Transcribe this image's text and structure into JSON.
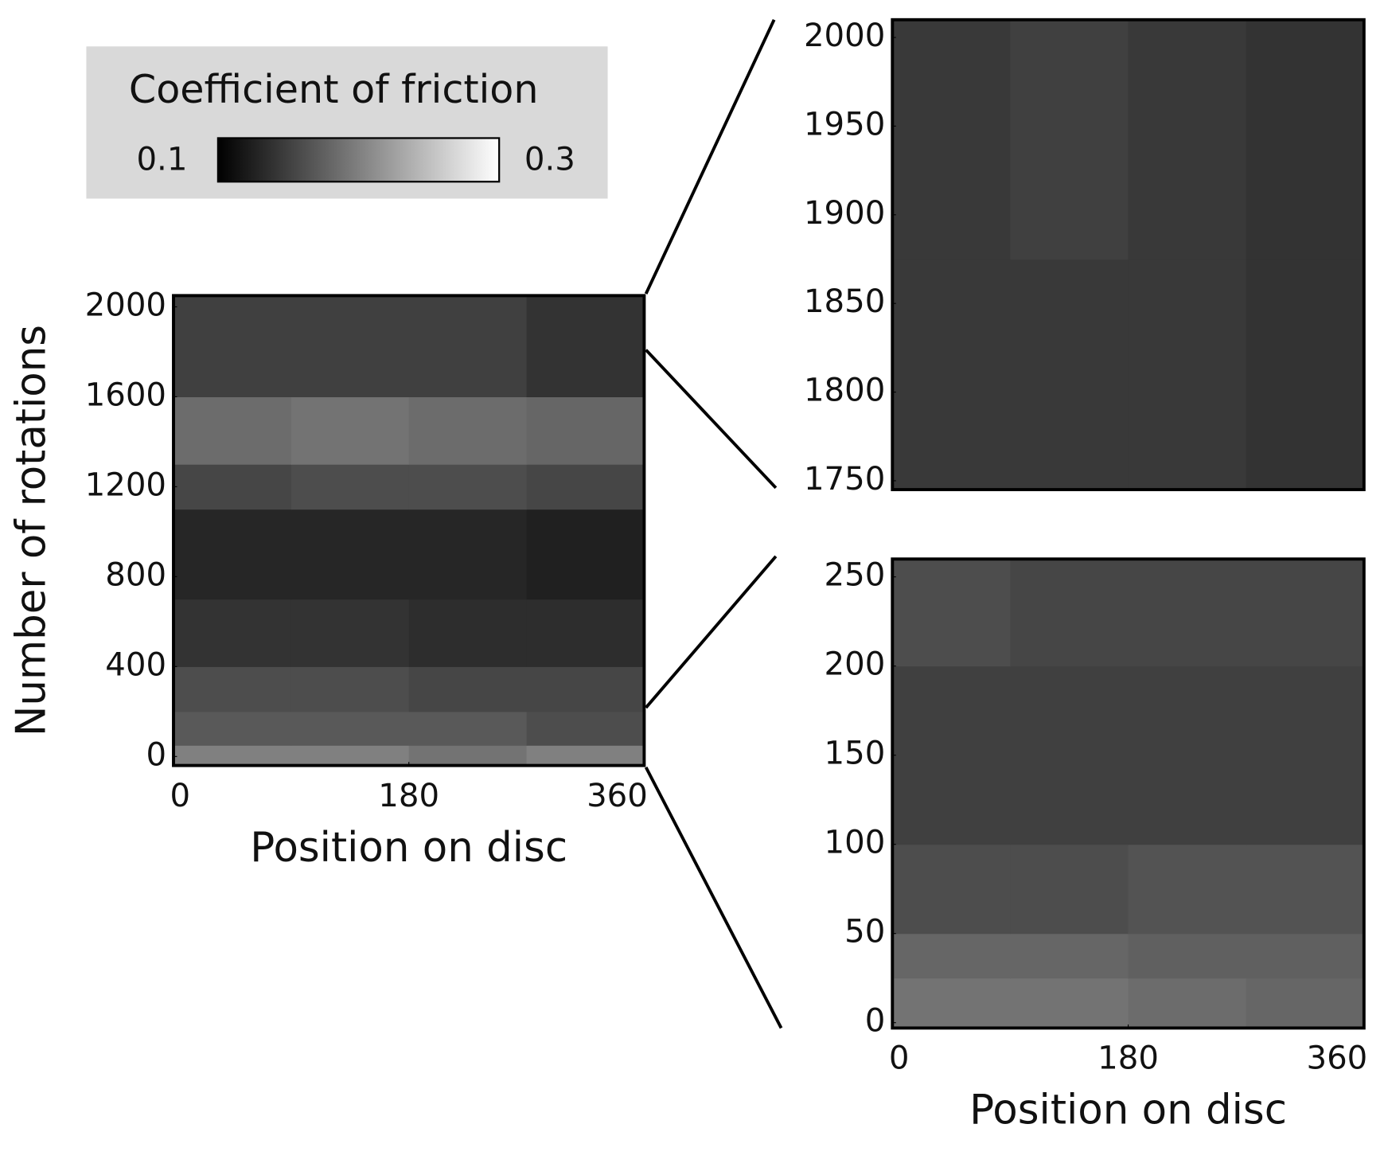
{
  "colorbar": {
    "title": "Coefficient of friction",
    "colormap": "gray",
    "zlim": [
      0.1,
      0.3
    ],
    "ticks": [
      0.1,
      0.3
    ]
  },
  "chart_data": [
    {
      "type": "heatmap",
      "xlabel": "Position on disc",
      "ylabel": "Number of rotations",
      "xlim": [
        0,
        360
      ],
      "xticks": [
        0,
        180,
        360
      ],
      "ylim": [
        -40,
        2050
      ],
      "yticks": [
        0,
        400,
        800,
        1200,
        1600,
        2000
      ],
      "x": [
        0,
        90,
        180,
        270,
        360
      ],
      "y": [
        0,
        50,
        200,
        400,
        700,
        1100,
        1300,
        1600,
        2000
      ],
      "z": [
        [
          0.2,
          0.2,
          0.19,
          0.2
        ],
        [
          0.17,
          0.17,
          0.17,
          0.16
        ],
        [
          0.16,
          0.16,
          0.155,
          0.155
        ],
        [
          0.14,
          0.14,
          0.135,
          0.135
        ],
        [
          0.13,
          0.13,
          0.13,
          0.125
        ],
        [
          0.155,
          0.16,
          0.16,
          0.155
        ],
        [
          0.185,
          0.19,
          0.185,
          0.18
        ],
        [
          0.15,
          0.15,
          0.15,
          0.14
        ]
      ]
    },
    {
      "type": "heatmap",
      "ylim": [
        1745,
        2010
      ],
      "yticks": [
        1750,
        1800,
        1850,
        1900,
        1950,
        2000
      ],
      "x": [
        0,
        90,
        180,
        270,
        360
      ],
      "y": [
        1750,
        1875,
        2000
      ],
      "z": [
        [
          0.145,
          0.145,
          0.145,
          0.14
        ],
        [
          0.145,
          0.15,
          0.145,
          0.14
        ]
      ]
    },
    {
      "type": "heatmap",
      "xlabel": "Position on disc",
      "xlim": [
        0,
        360
      ],
      "xticks": [
        0,
        180,
        360
      ],
      "ylim": [
        -3,
        260
      ],
      "yticks": [
        0,
        50,
        100,
        150,
        200,
        250
      ],
      "x": [
        0,
        90,
        180,
        270,
        360
      ],
      "y": [
        0,
        25,
        50,
        100,
        150,
        200,
        250
      ],
      "z": [
        [
          0.19,
          0.19,
          0.185,
          0.18
        ],
        [
          0.18,
          0.18,
          0.175,
          0.175
        ],
        [
          0.16,
          0.16,
          0.165,
          0.165
        ],
        [
          0.15,
          0.15,
          0.15,
          0.15
        ],
        [
          0.15,
          0.15,
          0.15,
          0.15
        ],
        [
          0.16,
          0.155,
          0.155,
          0.155
        ]
      ]
    }
  ]
}
